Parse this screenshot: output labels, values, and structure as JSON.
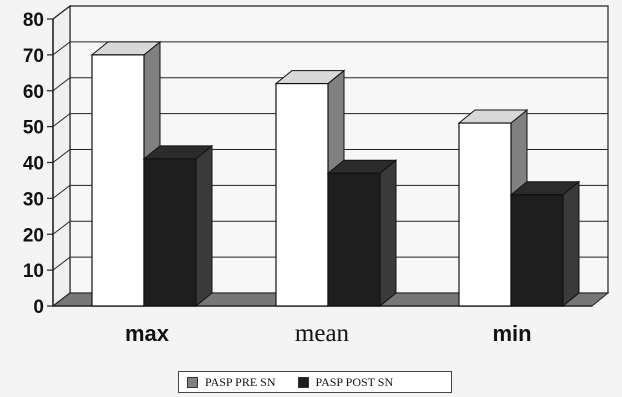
{
  "chart_data": {
    "type": "bar",
    "three_d": true,
    "categories": [
      "max",
      "mean",
      "min"
    ],
    "series": [
      {
        "name": "PASP PRE SN",
        "values": [
          70,
          62,
          51
        ],
        "color": "#ffffff",
        "side_color": "#808080"
      },
      {
        "name": "PASP POST SN",
        "values": [
          41,
          37,
          31
        ],
        "color": "#1e1e1e",
        "side_color": "#3a3a3a"
      }
    ],
    "yticks": [
      0,
      10,
      20,
      30,
      40,
      50,
      60,
      70,
      80
    ],
    "ylim": [
      0,
      80
    ],
    "title": "",
    "xlabel": "",
    "ylabel": "",
    "grid": true,
    "legend_placement": "bottom"
  }
}
